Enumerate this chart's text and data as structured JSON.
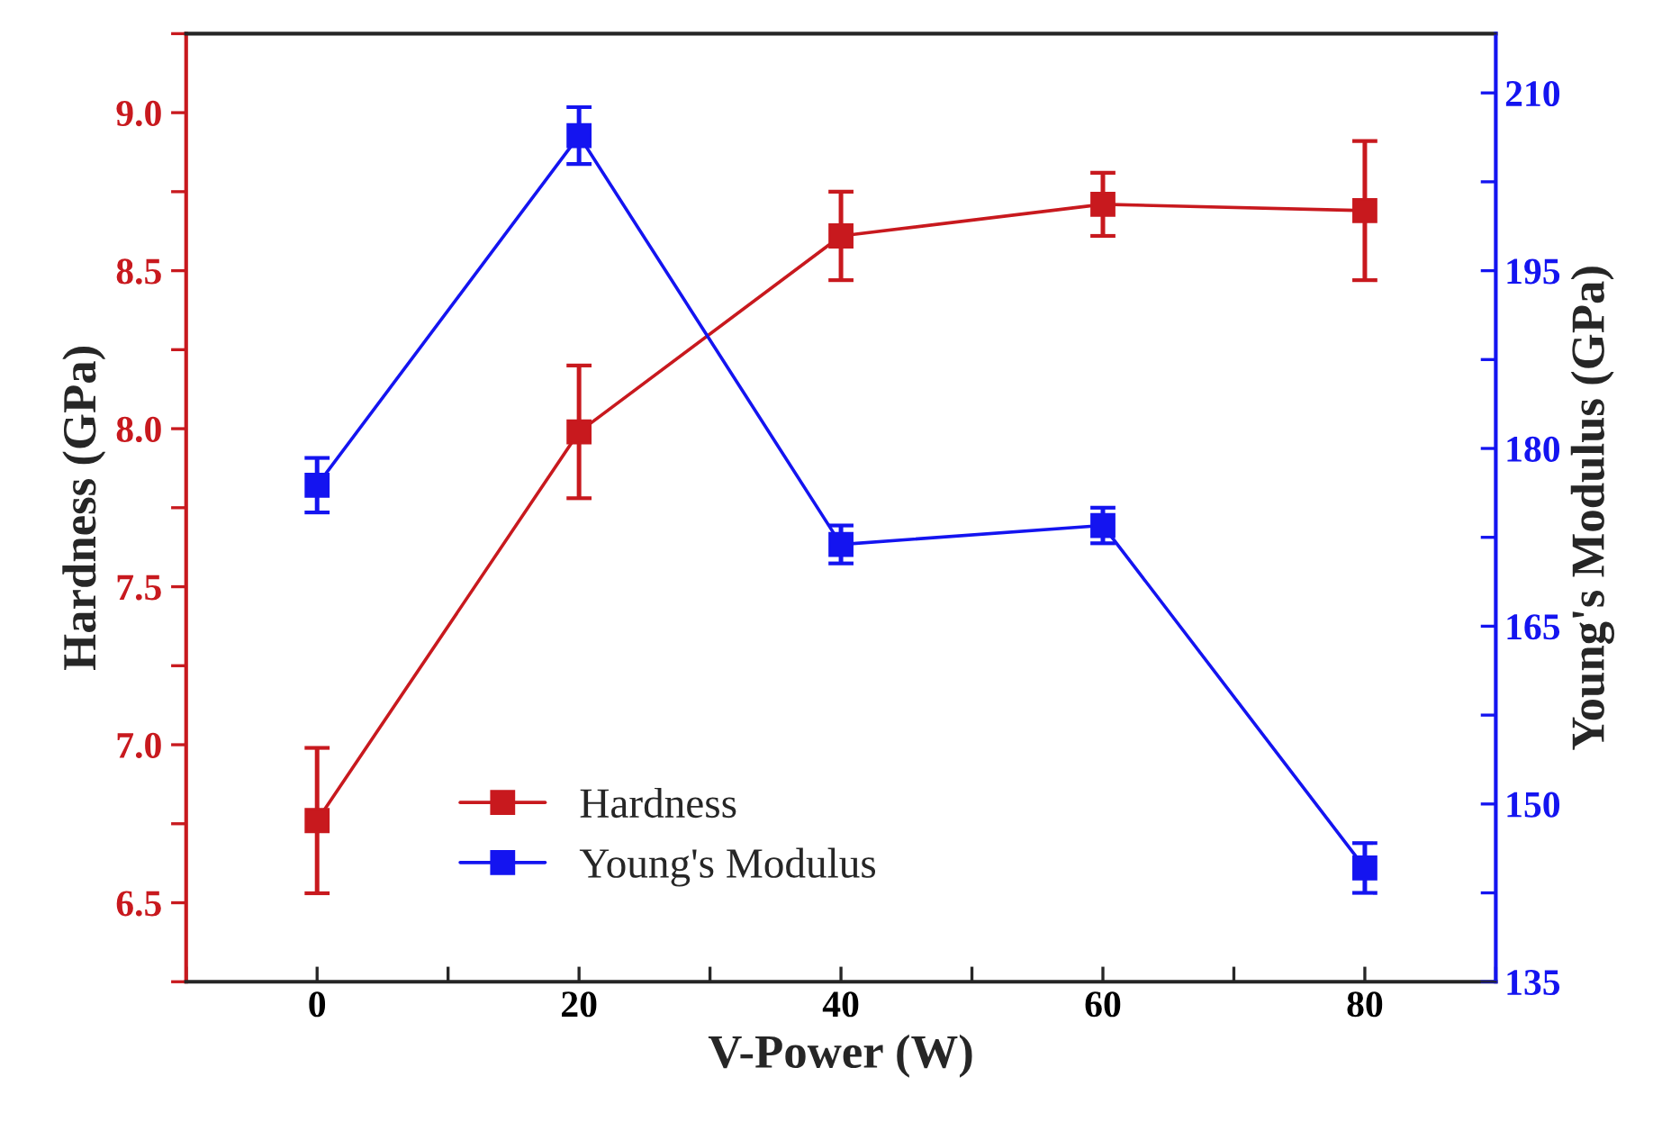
{
  "chart_data": {
    "type": "line",
    "xlabel": "V-Power (W)",
    "ylabel": "Hardness (GPa)",
    "y2label": "Young's Modulus (GPa)",
    "x": [
      0,
      20,
      40,
      60,
      80
    ],
    "series": [
      {
        "name": "Hardness",
        "color": "#c8191e",
        "values": [
          6.76,
          7.99,
          8.61,
          8.71,
          8.69
        ],
        "errors": [
          0.23,
          0.21,
          0.14,
          0.1,
          0.22
        ]
      },
      {
        "name": "Young's Modulus",
        "color": "#1414f0",
        "axis": "y2",
        "values": [
          176.9,
          206.4,
          171.9,
          173.5,
          144.6
        ],
        "errors": [
          2.3,
          2.4,
          1.6,
          1.5,
          2.1
        ]
      }
    ],
    "xlim": [
      -10,
      90
    ],
    "xticks": [
      0,
      20,
      40,
      60,
      80
    ],
    "ylim": [
      6.25,
      9.25
    ],
    "yticks": [
      6.5,
      {
        "value": 7,
        "label": "7.0"
      },
      7.5,
      {
        "value": 8,
        "label": "8.0"
      },
      8.5,
      {
        "value": 9,
        "label": "9.0"
      }
    ],
    "y2lim": [
      135,
      215
    ],
    "y2ticks": [
      135,
      150,
      165,
      180,
      195,
      210
    ],
    "marker": "square",
    "line_style": "solid",
    "legend": "bottom left",
    "grid": false
  }
}
